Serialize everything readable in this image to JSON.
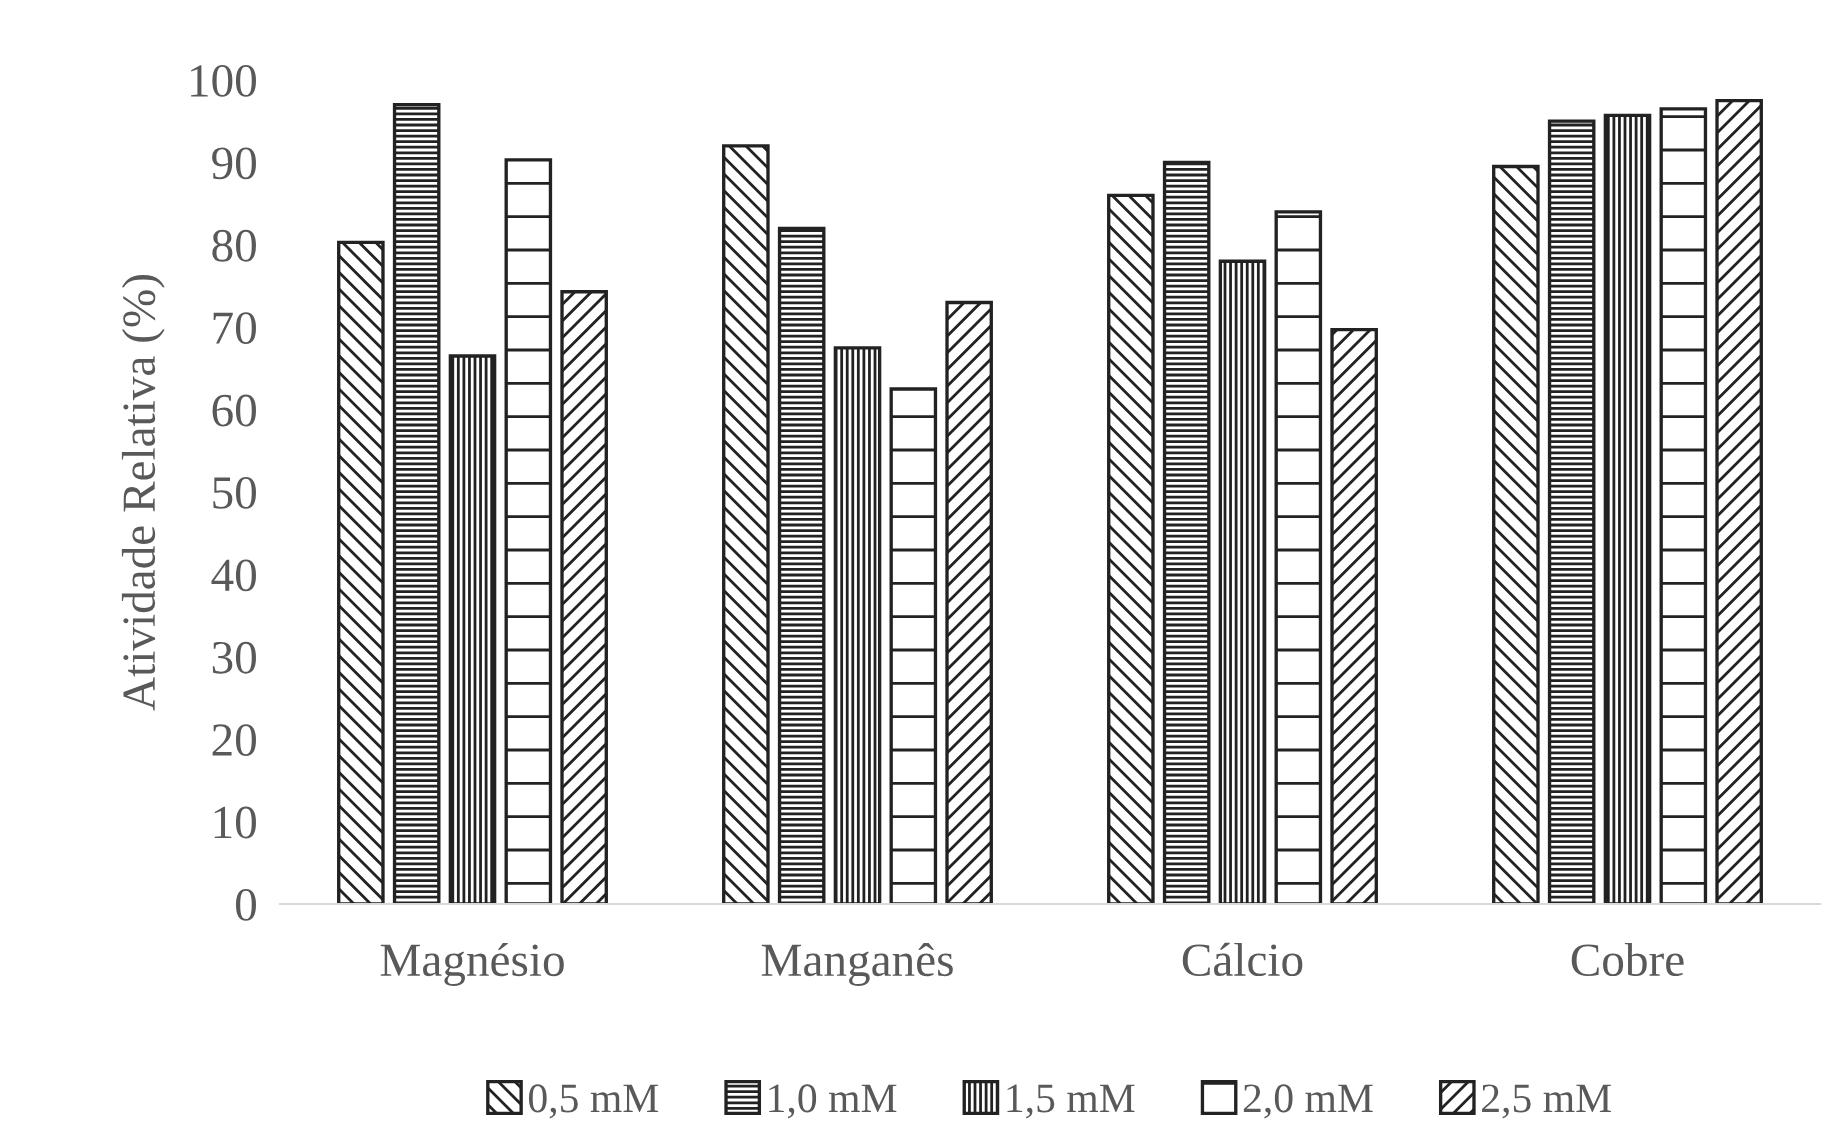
{
  "chart_data": {
    "type": "bar",
    "ylabel": "Atividade Relativa (%)",
    "categories": [
      "Magnésio",
      "Manganês",
      "Cálcio",
      "Cobre"
    ],
    "series": [
      {
        "name": "0,5 mM",
        "color": "#222222",
        "values": [
          80.3,
          92,
          86,
          89.5
        ]
      },
      {
        "name": "1,0 mM",
        "color": "#222222",
        "values": [
          97,
          82,
          90,
          95
        ]
      },
      {
        "name": "1,5 mM",
        "color": "#222222",
        "values": [
          66.5,
          67.5,
          78,
          95.7
        ]
      },
      {
        "name": "2,0 mM",
        "color": "#222222",
        "values": [
          90.3,
          62.5,
          84,
          96.5
        ]
      },
      {
        "name": "2,5 mM",
        "color": "#222222",
        "values": [
          74.3,
          73,
          69.7,
          97.5
        ]
      }
    ],
    "ylim": [
      0,
      100
    ],
    "yticks": [
      0,
      10,
      20,
      30,
      40,
      50,
      60,
      70,
      80,
      90,
      100
    ],
    "grid": false,
    "legend": "bottom"
  }
}
